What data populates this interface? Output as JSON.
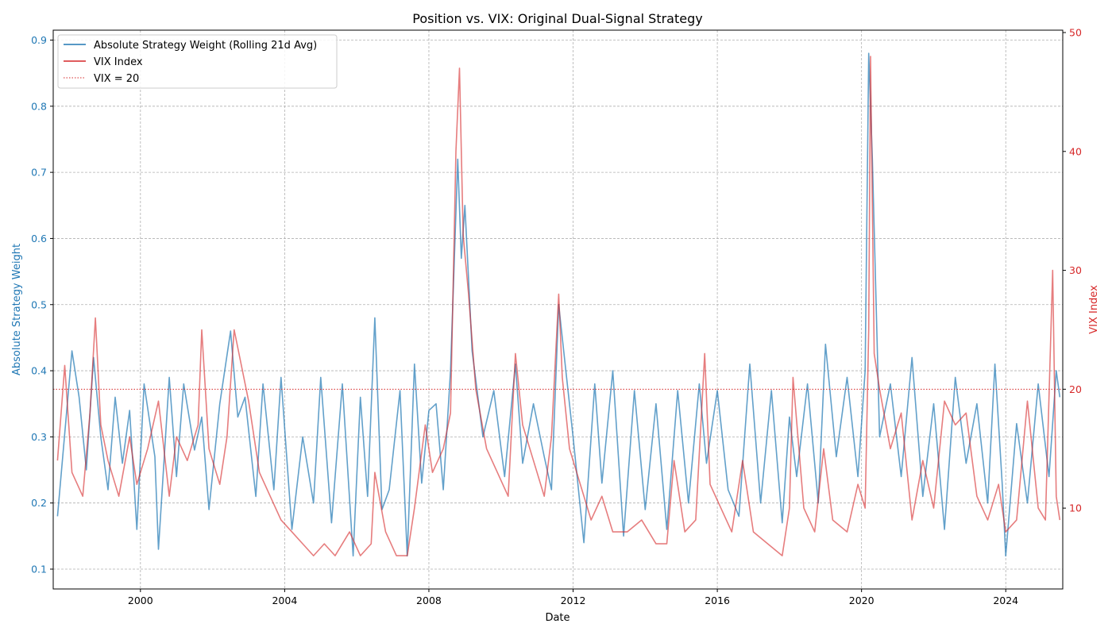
{
  "chart_data": {
    "type": "line",
    "title": "Position vs. VIX: Original Dual-Signal Strategy",
    "xlabel": "Date",
    "ylabel_left": "Absolute Strategy Weight",
    "ylabel_right": "VIX Index",
    "x_range": [
      "1997-08-01",
      "2025-08-01"
    ],
    "x_ticks": [
      "2000",
      "2004",
      "2008",
      "2012",
      "2016",
      "2020",
      "2024"
    ],
    "ylim_left": [
      0.07,
      0.915
    ],
    "ylim_right": [
      3.2,
      50.2
    ],
    "y_ticks_left": [
      "0.1",
      "0.2",
      "0.3",
      "0.4",
      "0.5",
      "0.6",
      "0.7",
      "0.8",
      "0.9"
    ],
    "y_ticks_right": [
      "10",
      "20",
      "30",
      "40",
      "50"
    ],
    "grid": true,
    "legend_position": "top-left",
    "colors": {
      "weight": "#1f77b4",
      "vix": "#d62728",
      "threshold": "#d62728",
      "left_axis_text": "#1f77b4",
      "right_axis_text": "#d62728"
    },
    "legend": [
      {
        "label": "Absolute Strategy Weight (Rolling 21d Avg)",
        "style": "solid",
        "color": "#1f77b4"
      },
      {
        "label": "VIX Index",
        "style": "solid",
        "color": "#d62728"
      },
      {
        "label": "VIX = 20",
        "style": "dotted",
        "color": "#d62728"
      }
    ],
    "threshold": {
      "name": "VIX = 20",
      "axis": "right",
      "value": 20
    },
    "series": [
      {
        "name": "Absolute Strategy Weight (Rolling 21d Avg)",
        "axis": "left",
        "x": [
          1997.7,
          1998.1,
          1998.3,
          1998.5,
          1998.7,
          1998.9,
          1999.1,
          1999.3,
          1999.5,
          1999.7,
          1999.9,
          2000.1,
          2000.4,
          2000.5,
          2000.8,
          2001.0,
          2001.2,
          2001.5,
          2001.7,
          2001.9,
          2002.2,
          2002.5,
          2002.7,
          2002.9,
          2003.2,
          2003.4,
          2003.7,
          2003.9,
          2004.2,
          2004.5,
          2004.8,
          2005.0,
          2005.3,
          2005.6,
          2005.9,
          2006.1,
          2006.3,
          2006.5,
          2006.7,
          2006.9,
          2007.2,
          2007.4,
          2007.6,
          2007.8,
          2008.0,
          2008.2,
          2008.4,
          2008.6,
          2008.8,
          2008.9,
          2009.0,
          2009.2,
          2009.5,
          2009.8,
          2010.1,
          2010.4,
          2010.6,
          2010.9,
          2011.2,
          2011.4,
          2011.6,
          2011.8,
          2012.0,
          2012.3,
          2012.6,
          2012.8,
          2013.1,
          2013.4,
          2013.7,
          2014.0,
          2014.3,
          2014.6,
          2014.9,
          2015.2,
          2015.5,
          2015.7,
          2016.0,
          2016.3,
          2016.6,
          2016.9,
          2017.2,
          2017.5,
          2017.8,
          2018.0,
          2018.2,
          2018.5,
          2018.8,
          2019.0,
          2019.3,
          2019.6,
          2019.9,
          2020.1,
          2020.2,
          2020.3,
          2020.5,
          2020.8,
          2021.1,
          2021.4,
          2021.7,
          2022.0,
          2022.3,
          2022.6,
          2022.9,
          2023.2,
          2023.5,
          2023.7,
          2023.9,
          2024.0,
          2024.3,
          2024.6,
          2024.9,
          2025.2,
          2025.4,
          2025.5
        ],
        "values": [
          0.18,
          0.43,
          0.36,
          0.25,
          0.42,
          0.3,
          0.22,
          0.36,
          0.26,
          0.34,
          0.16,
          0.38,
          0.27,
          0.13,
          0.39,
          0.24,
          0.38,
          0.28,
          0.33,
          0.19,
          0.35,
          0.46,
          0.33,
          0.36,
          0.21,
          0.38,
          0.22,
          0.39,
          0.16,
          0.3,
          0.2,
          0.39,
          0.17,
          0.38,
          0.12,
          0.36,
          0.21,
          0.48,
          0.19,
          0.22,
          0.37,
          0.12,
          0.41,
          0.23,
          0.34,
          0.35,
          0.22,
          0.4,
          0.72,
          0.57,
          0.65,
          0.43,
          0.3,
          0.37,
          0.24,
          0.41,
          0.26,
          0.35,
          0.27,
          0.22,
          0.5,
          0.4,
          0.3,
          0.14,
          0.38,
          0.23,
          0.4,
          0.15,
          0.37,
          0.19,
          0.35,
          0.16,
          0.37,
          0.2,
          0.38,
          0.26,
          0.37,
          0.22,
          0.18,
          0.41,
          0.2,
          0.37,
          0.17,
          0.33,
          0.24,
          0.38,
          0.2,
          0.44,
          0.27,
          0.39,
          0.24,
          0.4,
          0.88,
          0.72,
          0.3,
          0.38,
          0.24,
          0.42,
          0.21,
          0.35,
          0.16,
          0.39,
          0.26,
          0.35,
          0.2,
          0.41,
          0.23,
          0.12,
          0.32,
          0.2,
          0.38,
          0.24,
          0.4,
          0.36
        ],
        "color": "#1f77b4"
      },
      {
        "name": "VIX Index",
        "axis": "right",
        "x": [
          1997.7,
          1997.9,
          1998.1,
          1998.4,
          1998.6,
          1998.75,
          1998.9,
          1999.1,
          1999.4,
          1999.7,
          1999.9,
          2000.2,
          2000.5,
          2000.8,
          2001.0,
          2001.3,
          2001.6,
          2001.7,
          2001.9,
          2002.2,
          2002.4,
          2002.6,
          2002.8,
          2003.0,
          2003.3,
          2003.6,
          2003.9,
          2004.2,
          2004.5,
          2004.8,
          2005.1,
          2005.4,
          2005.8,
          2006.1,
          2006.4,
          2006.5,
          2006.8,
          2007.1,
          2007.4,
          2007.6,
          2007.9,
          2008.1,
          2008.4,
          2008.6,
          2008.75,
          2008.85,
          2008.95,
          2009.1,
          2009.3,
          2009.6,
          2009.9,
          2010.2,
          2010.4,
          2010.6,
          2010.9,
          2011.2,
          2011.4,
          2011.6,
          2011.7,
          2011.9,
          2012.2,
          2012.5,
          2012.8,
          2013.1,
          2013.5,
          2013.9,
          2014.3,
          2014.6,
          2014.8,
          2015.1,
          2015.4,
          2015.65,
          2015.8,
          2016.1,
          2016.4,
          2016.7,
          2017.0,
          2017.4,
          2017.8,
          2018.0,
          2018.1,
          2018.4,
          2018.7,
          2018.95,
          2019.2,
          2019.6,
          2019.9,
          2020.1,
          2020.2,
          2020.25,
          2020.35,
          2020.5,
          2020.8,
          2021.1,
          2021.4,
          2021.7,
          2022.0,
          2022.3,
          2022.6,
          2022.9,
          2023.2,
          2023.5,
          2023.8,
          2024.0,
          2024.3,
          2024.6,
          2024.9,
          2025.1,
          2025.3,
          2025.4,
          2025.5
        ],
        "values": [
          14,
          22,
          13,
          11,
          18,
          26,
          17,
          14,
          11,
          16,
          12,
          15,
          19,
          11,
          16,
          14,
          17,
          25,
          15,
          12,
          16,
          25,
          22,
          19,
          13,
          11,
          9,
          8,
          7,
          6,
          7,
          6,
          8,
          6,
          7,
          13,
          8,
          6,
          6,
          10,
          17,
          13,
          15,
          18,
          40,
          47,
          33,
          28,
          20,
          15,
          13,
          11,
          23,
          17,
          14,
          11,
          16,
          28,
          21,
          15,
          12,
          9,
          11,
          8,
          8,
          9,
          7,
          7,
          14,
          8,
          9,
          23,
          12,
          10,
          8,
          14,
          8,
          7,
          6,
          10,
          21,
          10,
          8,
          15,
          9,
          8,
          12,
          10,
          25,
          48,
          23,
          20,
          15,
          18,
          9,
          14,
          10,
          19,
          17,
          18,
          11,
          9,
          12,
          8,
          9,
          19,
          10,
          9,
          30,
          11,
          9
        ],
        "color": "#d62728"
      }
    ]
  }
}
